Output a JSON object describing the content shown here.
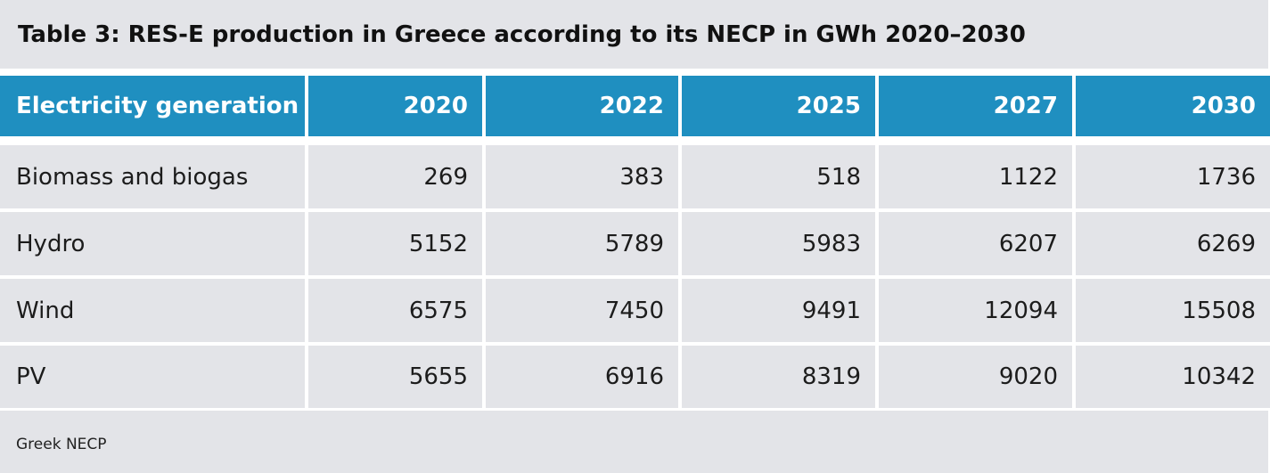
{
  "title": "Table 3: RES-E production in Greece according to its NECP in GWh 2020–2030",
  "table": {
    "headers": [
      "Electricity generation",
      "2020",
      "2022",
      "2025",
      "2027",
      "2030"
    ],
    "rows": [
      [
        "Biomass and biogas",
        "269",
        "383",
        "518",
        "1122",
        "1736"
      ],
      [
        "Hydro",
        "5152",
        "5789",
        "5983",
        "6207",
        "6269"
      ],
      [
        "Wind",
        "6575",
        "7450",
        "9491",
        "12094",
        "15508"
      ],
      [
        "PV",
        "5655",
        "6916",
        "8319",
        "9020",
        "10342"
      ]
    ]
  },
  "source": "Greek NECP",
  "colors": {
    "header_background": "#1f8fc0",
    "header_text": "#ffffff",
    "cell_background": "#e3e4e8",
    "text": "#1c1c1c"
  }
}
